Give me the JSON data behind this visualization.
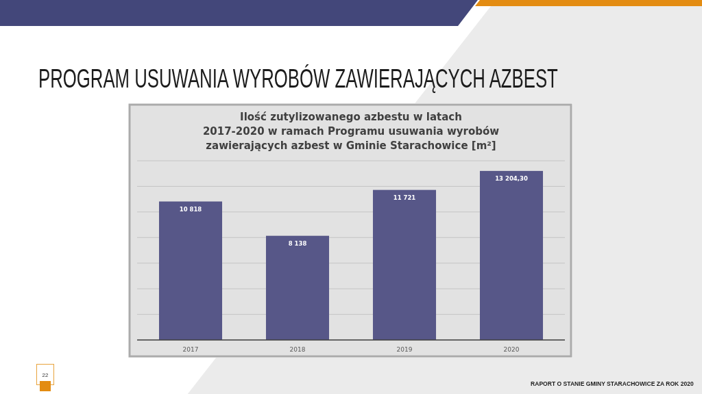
{
  "chart_data": {
    "type": "bar",
    "title": "PROGRAM USUWANIA WYROBÓW ZAWIERAJĄCYCH AZBEST",
    "subtitle": "Ilość zutylizowanego azbestu w latach\n2017-2020 w ramach Programu usuwania wyrobów\nzawierających azbest w Gminie Starachowice [m²]",
    "categories": [
      "2017",
      "2018",
      "2019",
      "2020"
    ],
    "values": [
      10818,
      8138,
      11721,
      13204.3
    ],
    "value_labels": [
      "10 818",
      "8 138",
      "11 721",
      "13 204,30"
    ],
    "color": "#575788",
    "ylim": [
      0,
      14000
    ],
    "yticks": [
      {
        "value": 0,
        "label": null
      },
      {
        "value": 2000,
        "label": null
      },
      {
        "value": 4000,
        "label": null
      },
      {
        "value": 6000,
        "label": null
      },
      {
        "value": 8000,
        "label": null
      },
      {
        "value": 10000,
        "label": null
      },
      {
        "value": 12000,
        "label": null
      },
      {
        "value": 14000,
        "label": null
      }
    ],
    "grid": "y",
    "tick_labels": "x",
    "annotations": [
      "22",
      "RAPORT O STANIE GMINY STARACHOWICE ZA ROK 2020"
    ]
  }
}
